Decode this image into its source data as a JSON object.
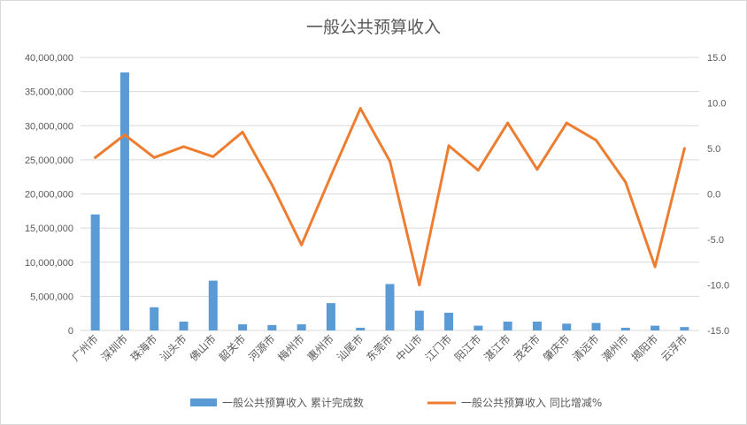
{
  "chart_data": {
    "type": "bar+line",
    "title": "一般公共预算收入",
    "categories": [
      "广州市",
      "深圳市",
      "珠海市",
      "汕头市",
      "佛山市",
      "韶关市",
      "河源市",
      "梅州市",
      "惠州市",
      "汕尾市",
      "东莞市",
      "中山市",
      "江门市",
      "阳江市",
      "湛江市",
      "茂名市",
      "肇庆市",
      "清远市",
      "潮州市",
      "揭阳市",
      "云浮市"
    ],
    "series": [
      {
        "name": "一般公共预算收入 累计完成数",
        "type": "bar",
        "axis": "left",
        "color": "#5b9bd5",
        "values": [
          17000000,
          37800000,
          3400000,
          1300000,
          7300000,
          900000,
          800000,
          900000,
          4000000,
          400000,
          6800000,
          2900000,
          2600000,
          700000,
          1300000,
          1300000,
          1000000,
          1100000,
          400000,
          700000,
          500000
        ]
      },
      {
        "name": "一般公共预算收入 同比增减%",
        "type": "line",
        "axis": "right",
        "color": "#ed7d31",
        "values": [
          4.0,
          6.5,
          4.0,
          5.2,
          4.1,
          6.8,
          1.0,
          -5.6,
          2.0,
          9.4,
          3.6,
          -10.0,
          5.3,
          2.6,
          7.8,
          2.7,
          7.8,
          5.9,
          1.3,
          -8.0,
          5.0
        ]
      }
    ],
    "y_left": {
      "min": 0,
      "max": 40000000,
      "step": 5000000,
      "ticks": [
        "0",
        "5,000,000",
        "10,000,000",
        "15,000,000",
        "20,000,000",
        "25,000,000",
        "30,000,000",
        "35,000,000",
        "40,000,000"
      ]
    },
    "y_right": {
      "min": -15,
      "max": 15,
      "step": 5,
      "ticks": [
        "-15.0",
        "-10.0",
        "-5.0",
        "0.0",
        "5.0",
        "10.0",
        "15.0"
      ]
    },
    "grid": true,
    "legend_position": "bottom"
  }
}
